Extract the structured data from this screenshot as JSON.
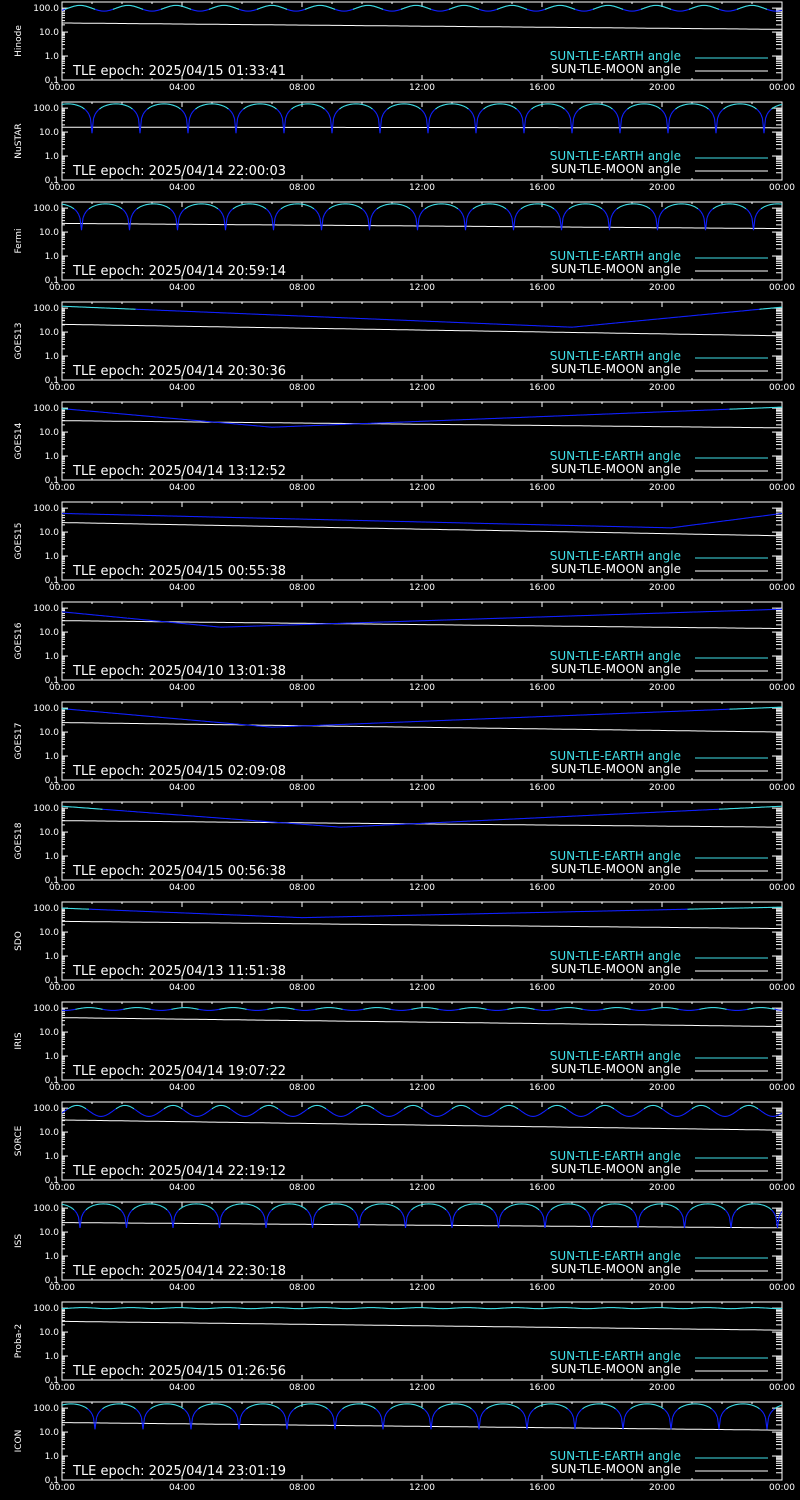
{
  "colors": {
    "background": "#000000",
    "axes": "#ffffff",
    "earth_line": "#40e0e8",
    "earth_line_dip": "#1020ff",
    "moon_line": "#ffffff"
  },
  "x_tick_labels": [
    "00:00",
    "04:00",
    "08:00",
    "12:00",
    "16:00",
    "20:00",
    "00:00"
  ],
  "y_tick_labels": [
    "0.1",
    "1.0",
    "10.0",
    "100.0"
  ],
  "legend": {
    "earth": "SUN-TLE-EARTH angle",
    "moon": "SUN-TLE-MOON angle"
  },
  "chart_data": [
    {
      "type": "line",
      "satellite": "Hinode",
      "epoch": "TLE epoch: 2025/04/15 01:33:41",
      "xlim": [
        0,
        24
      ],
      "ylim": [
        0.1,
        180
      ],
      "log_y": true,
      "earth": {
        "kind": "periodic",
        "base": 75,
        "peak": 130,
        "period": 1.6,
        "phase": 0.2
      },
      "moon": {
        "kind": "linear",
        "start": 24,
        "end": 13
      }
    },
    {
      "type": "line",
      "satellite": "NuSTAR",
      "epoch": "TLE epoch: 2025/04/14 22:00:03",
      "xlim": [
        0,
        24
      ],
      "ylim": [
        0.1,
        180
      ],
      "log_y": true,
      "earth": {
        "kind": "dips",
        "min": 9,
        "peak": 150,
        "period": 1.6,
        "phase": 1.0
      },
      "moon": {
        "kind": "linear",
        "start": 16,
        "end": 15
      }
    },
    {
      "type": "line",
      "satellite": "Fermi",
      "epoch": "TLE epoch: 2025/04/14 20:59:14",
      "xlim": [
        0,
        24
      ],
      "ylim": [
        0.1,
        180
      ],
      "log_y": true,
      "earth": {
        "kind": "dips",
        "min": 12,
        "peak": 150,
        "period": 1.6,
        "phase": 0.65
      },
      "moon": {
        "kind": "linear",
        "start": 23,
        "end": 14
      }
    },
    {
      "type": "line",
      "satellite": "GOES13",
      "epoch": "TLE epoch: 2025/04/14 20:30:36",
      "xlim": [
        0,
        24
      ],
      "ylim": [
        0.1,
        180
      ],
      "log_y": true,
      "earth": {
        "kind": "v",
        "high_start": 120,
        "min": 16,
        "t_min": 17,
        "high_end": 110
      },
      "moon": {
        "kind": "linear",
        "start": 21,
        "end": 7
      }
    },
    {
      "type": "line",
      "satellite": "GOES14",
      "epoch": "TLE epoch: 2025/04/14 13:12:52",
      "xlim": [
        0,
        24
      ],
      "ylim": [
        0.1,
        180
      ],
      "log_y": true,
      "earth": {
        "kind": "v",
        "high_start": 95,
        "min": 16,
        "t_min": 7,
        "high_end": 110
      },
      "moon": {
        "kind": "linear",
        "start": 30,
        "end": 15
      }
    },
    {
      "type": "line",
      "satellite": "GOES15",
      "epoch": "TLE epoch: 2025/04/15 00:55:38",
      "xlim": [
        0,
        24
      ],
      "ylim": [
        0.1,
        180
      ],
      "log_y": true,
      "earth": {
        "kind": "v",
        "high_start": 60,
        "min": 15,
        "t_min": 20.3,
        "high_end": 60
      },
      "moon": {
        "kind": "linear",
        "start": 25,
        "end": 7
      }
    },
    {
      "type": "line",
      "satellite": "GOES16",
      "epoch": "TLE epoch: 2025/04/10 13:01:38",
      "xlim": [
        0,
        24
      ],
      "ylim": [
        0.1,
        180
      ],
      "log_y": true,
      "earth": {
        "kind": "v",
        "high_start": 70,
        "min": 16,
        "t_min": 5.3,
        "high_end": 90
      },
      "moon": {
        "kind": "linear",
        "start": 30,
        "end": 14
      }
    },
    {
      "type": "line",
      "satellite": "GOES17",
      "epoch": "TLE epoch: 2025/04/15 02:09:08",
      "xlim": [
        0,
        24
      ],
      "ylim": [
        0.1,
        180
      ],
      "log_y": true,
      "earth": {
        "kind": "v",
        "high_start": 95,
        "min": 16,
        "t_min": 7,
        "high_end": 110
      },
      "moon": {
        "kind": "linear",
        "start": 25,
        "end": 10
      }
    },
    {
      "type": "line",
      "satellite": "GOES18",
      "epoch": "TLE epoch: 2025/04/15 00:56:38",
      "xlim": [
        0,
        24
      ],
      "ylim": [
        0.1,
        180
      ],
      "log_y": true,
      "earth": {
        "kind": "v",
        "high_start": 120,
        "min": 16,
        "t_min": 9.3,
        "high_end": 120
      },
      "moon": {
        "kind": "linear",
        "start": 30,
        "end": 16
      }
    },
    {
      "type": "line",
      "satellite": "SDO",
      "epoch": "TLE epoch: 2025/04/13 11:51:38",
      "xlim": [
        0,
        24
      ],
      "ylim": [
        0.1,
        180
      ],
      "log_y": true,
      "earth": {
        "kind": "v",
        "high_start": 100,
        "min": 40,
        "t_min": 8,
        "high_end": 110
      },
      "moon": {
        "kind": "linear",
        "start": 28,
        "end": 14
      }
    },
    {
      "type": "line",
      "satellite": "IRIS",
      "epoch": "TLE epoch: 2025/04/14 19:07:22",
      "xlim": [
        0,
        24
      ],
      "ylim": [
        0.1,
        180
      ],
      "log_y": true,
      "earth": {
        "kind": "periodic",
        "base": 80,
        "peak": 105,
        "period": 1.6,
        "phase": 0.5
      },
      "moon": {
        "kind": "linear",
        "start": 40,
        "end": 17
      }
    },
    {
      "type": "line",
      "satellite": "SORCE",
      "epoch": "TLE epoch: 2025/04/14 22:19:12",
      "xlim": [
        0,
        24
      ],
      "ylim": [
        0.1,
        180
      ],
      "log_y": true,
      "earth": {
        "kind": "periodic",
        "base": 45,
        "peak": 130,
        "period": 1.6,
        "phase": 0.1
      },
      "moon": {
        "kind": "linear",
        "start": 32,
        "end": 12
      }
    },
    {
      "type": "line",
      "satellite": "ISS",
      "epoch": "TLE epoch: 2025/04/14 22:30:18",
      "xlim": [
        0,
        24
      ],
      "ylim": [
        0.1,
        180
      ],
      "log_y": true,
      "earth": {
        "kind": "dips",
        "min": 15,
        "peak": 150,
        "period": 1.55,
        "phase": 0.6
      },
      "moon": {
        "kind": "linear",
        "start": 25,
        "end": 15
      }
    },
    {
      "type": "line",
      "satellite": "Proba-2",
      "epoch": "TLE epoch: 2025/04/15 01:26:56",
      "xlim": [
        0,
        24
      ],
      "ylim": [
        0.1,
        180
      ],
      "log_y": true,
      "earth": {
        "kind": "periodic",
        "base": 95,
        "peak": 105,
        "period": 1.6,
        "phase": 0.3
      },
      "moon": {
        "kind": "linear",
        "start": 28,
        "end": 12
      }
    },
    {
      "type": "line",
      "satellite": "ICON",
      "epoch": "TLE epoch: 2025/04/14 23:01:19",
      "xlim": [
        0,
        24
      ],
      "ylim": [
        0.1,
        180
      ],
      "log_y": true,
      "earth": {
        "kind": "dips",
        "min": 13,
        "peak": 150,
        "period": 1.6,
        "phase": 1.1
      },
      "moon": {
        "kind": "linear",
        "start": 25,
        "end": 12
      }
    }
  ]
}
